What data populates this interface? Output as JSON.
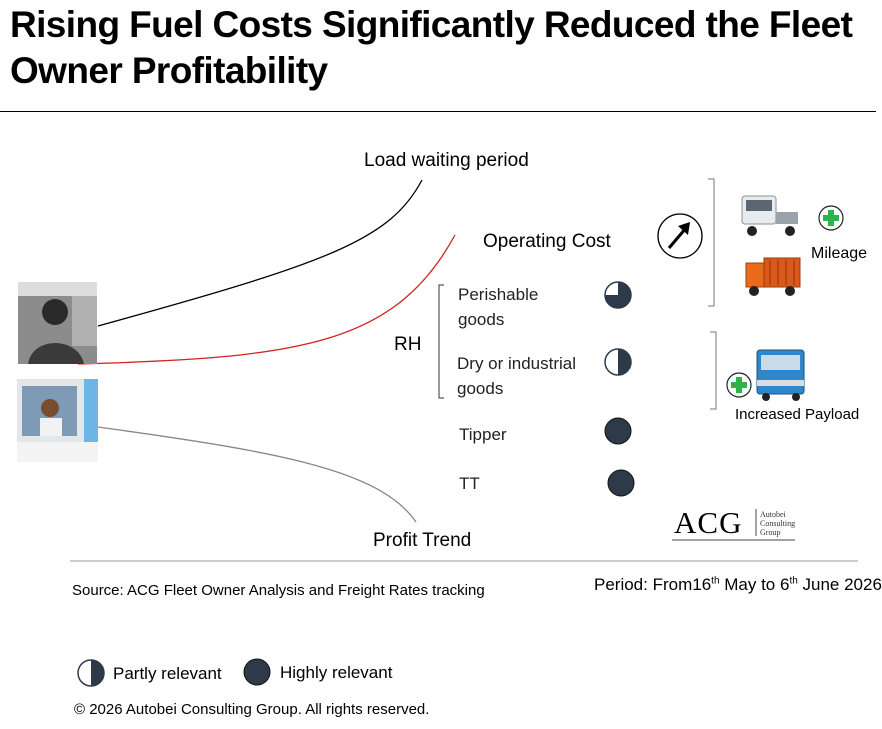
{
  "title": "Rising Fuel Costs Significantly Reduced the Fleet Owner Profitability",
  "diagram": {
    "load_waiting": "Load waiting period",
    "operating_cost": "Operating Cost",
    "profit_trend": "Profit Trend",
    "rh": "RH",
    "segments": [
      {
        "label_line1": "Perishable",
        "label_line2": "goods",
        "relevance": "partly"
      },
      {
        "label_line1": "Dry or industrial",
        "label_line2": "goods",
        "relevance": "partly"
      },
      {
        "label_line1": "Tipper",
        "label_line2": "",
        "relevance": "highly"
      },
      {
        "label_line1": "TT",
        "label_line2": "",
        "relevance": "highly"
      }
    ],
    "mileage": "Mileage",
    "payload": "Increased Payload"
  },
  "logo": {
    "mark": "ACG",
    "line1": "Autobei",
    "line2": "Consulting",
    "line3": "Group"
  },
  "footer": {
    "source": "Source: ACG Fleet Owner Analysis and Freight Rates tracking",
    "period_prefix": "Period: From16",
    "period_sup1": "th",
    "period_mid": " May to 6",
    "period_sup2": "th",
    "period_suffix": " June 2026",
    "legend_partly": "Partly relevant",
    "legend_highly": "Highly relevant",
    "copyright": "© 2026 Autobei Consulting Group. All rights reserved."
  },
  "colors": {
    "dark_circle": "#2e3a4a",
    "red_line": "#d42020",
    "gray_line": "#888888",
    "green_plus": "#2db34a"
  },
  "icons": [
    "arrow-up-right-icon",
    "plus-icon",
    "truck-icon",
    "driver-photo"
  ]
}
